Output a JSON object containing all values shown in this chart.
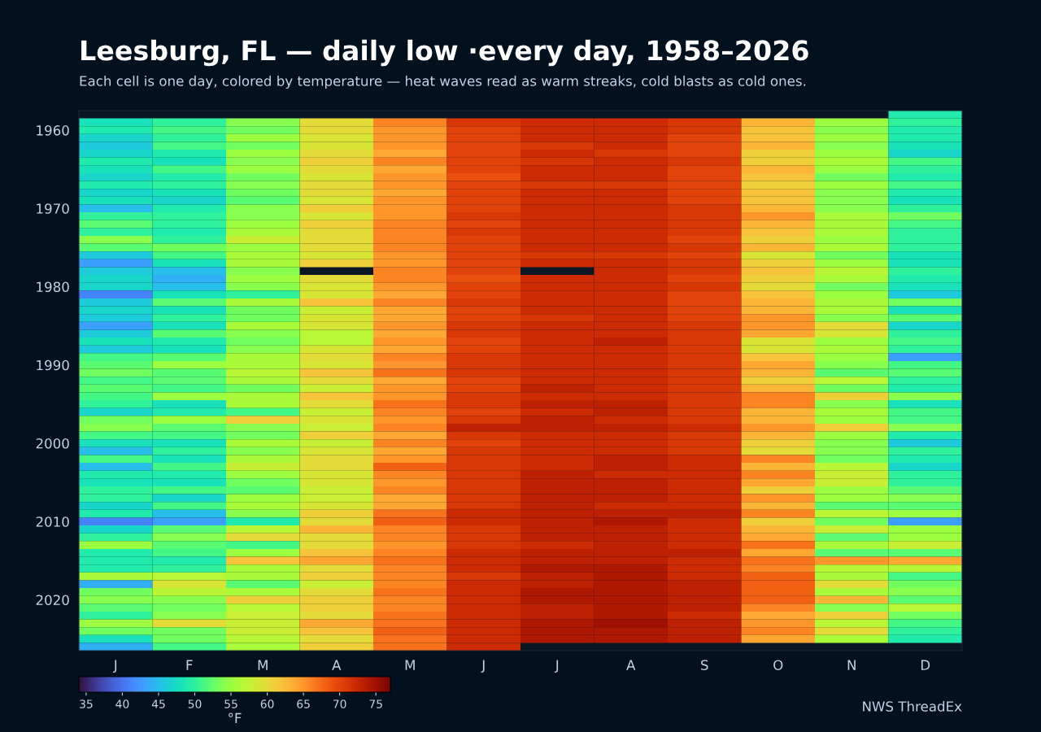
{
  "chart_data": {
    "type": "heatmap",
    "title": "Leesburg, FL — daily low ·every day, 1958–2026",
    "subtitle": "Each cell is one day, colored by temperature — heat waves read as warm streaks, cold blasts as cold ones.",
    "categories": [
      "J",
      "F",
      "M",
      "A",
      "M",
      "J",
      "J",
      "A",
      "S",
      "O",
      "N",
      "D"
    ],
    "y_categories": [
      null,
      null,
      "1960",
      null,
      null,
      null,
      null,
      null,
      null,
      null,
      null,
      null,
      "1970",
      null,
      null,
      null,
      null,
      null,
      null,
      null,
      null,
      null,
      "1980",
      null,
      null,
      null,
      null,
      null,
      null,
      null,
      null,
      null,
      "1990",
      null,
      null,
      null,
      null,
      null,
      null,
      null,
      null,
      null,
      "2000",
      null,
      null,
      null,
      null,
      null,
      null,
      null,
      null,
      null,
      "2010",
      null,
      null,
      null,
      null,
      null,
      null,
      null,
      null,
      null,
      "2020",
      null,
      null,
      null,
      null,
      null,
      null
    ],
    "cells": [
      [
        null,
        null,
        null,
        null,
        null,
        null,
        null,
        null,
        null,
        null,
        null,
        49
      ],
      [
        48,
        50,
        54,
        60,
        66,
        71,
        72,
        72,
        71,
        63,
        55,
        50
      ],
      [
        49,
        51,
        53,
        60,
        65,
        70,
        72,
        72,
        71,
        62,
        54,
        49
      ],
      [
        47,
        50,
        55,
        59,
        65,
        70,
        72,
        72,
        70,
        62,
        55,
        49
      ],
      [
        46,
        51,
        53,
        59,
        65,
        70,
        71,
        72,
        70,
        63,
        54,
        48
      ],
      [
        47,
        49,
        55,
        60,
        64,
        70,
        72,
        71,
        70,
        61,
        55,
        47
      ],
      [
        49,
        48,
        54,
        61,
        66,
        70,
        71,
        72,
        71,
        61,
        56,
        51
      ],
      [
        48,
        51,
        55,
        60,
        64,
        70,
        72,
        72,
        70,
        63,
        55,
        50
      ],
      [
        47,
        49,
        53,
        59,
        65,
        69,
        72,
        72,
        70,
        62,
        53,
        49
      ],
      [
        49,
        50,
        54,
        60,
        65,
        70,
        71,
        71,
        70,
        61,
        55,
        51
      ],
      [
        47,
        48,
        53,
        60,
        64,
        70,
        72,
        72,
        70,
        62,
        54,
        49
      ],
      [
        48,
        47,
        52,
        59,
        65,
        70,
        72,
        72,
        70,
        62,
        54,
        48
      ],
      [
        45,
        49,
        54,
        61,
        65,
        70,
        72,
        72,
        71,
        63,
        54,
        50
      ],
      [
        50,
        50,
        54,
        59,
        65,
        71,
        72,
        72,
        71,
        65,
        56,
        53
      ],
      [
        52,
        50,
        55,
        61,
        66,
        70,
        72,
        72,
        71,
        63,
        56,
        51
      ],
      [
        50,
        49,
        56,
        60,
        66,
        71,
        72,
        72,
        71,
        62,
        56,
        50
      ],
      [
        54,
        50,
        58,
        60,
        66,
        70,
        72,
        72,
        70,
        61,
        55,
        50
      ],
      [
        52,
        53,
        55,
        60,
        66,
        70,
        72,
        72,
        71,
        63,
        56,
        50
      ],
      [
        46,
        51,
        56,
        59,
        65,
        70,
        71,
        71,
        70,
        59,
        53,
        48
      ],
      [
        43,
        48,
        56,
        61,
        65,
        70,
        72,
        72,
        71,
        61,
        55,
        48
      ],
      [
        46,
        45,
        54,
        null,
        66,
        70,
        null,
        72,
        71,
        62,
        57,
        50
      ],
      [
        47,
        44,
        55,
        60,
        66,
        69,
        72,
        72,
        70,
        61,
        56,
        49
      ],
      [
        47,
        45,
        54,
        59,
        65,
        70,
        72,
        72,
        71,
        60,
        53,
        48
      ],
      [
        41,
        48,
        50,
        59,
        64,
        70,
        72,
        72,
        70,
        62,
        55,
        46
      ],
      [
        46,
        52,
        56,
        62,
        66,
        71,
        72,
        72,
        70,
        63,
        56,
        53
      ],
      [
        47,
        48,
        53,
        58,
        64,
        70,
        72,
        72,
        70,
        63,
        56,
        48
      ],
      [
        46,
        50,
        53,
        59,
        64,
        70,
        71,
        72,
        70,
        65,
        54,
        52
      ],
      [
        43,
        48,
        56,
        59,
        65,
        71,
        72,
        72,
        71,
        65,
        60,
        47
      ],
      [
        46,
        52,
        54,
        57,
        64,
        71,
        72,
        72,
        71,
        64,
        59,
        50
      ],
      [
        48,
        49,
        53,
        57,
        65,
        70,
        72,
        73,
        71,
        59,
        55,
        51
      ],
      [
        46,
        48,
        54,
        59,
        64,
        70,
        72,
        72,
        71,
        59,
        56,
        50
      ],
      [
        51,
        52,
        56,
        60,
        66,
        71,
        72,
        72,
        71,
        62,
        55,
        43
      ],
      [
        52,
        55,
        56,
        59,
        65,
        71,
        72,
        72,
        71,
        64,
        54,
        51
      ],
      [
        53,
        52,
        57,
        62,
        67,
        71,
        72,
        72,
        71,
        63,
        52,
        52
      ],
      [
        51,
        52,
        56,
        60,
        64,
        70,
        72,
        72,
        71,
        61,
        57,
        50
      ],
      [
        52,
        51,
        53,
        58,
        65,
        70,
        73,
        72,
        71,
        63,
        53,
        49
      ],
      [
        51,
        55,
        56,
        62,
        65,
        71,
        72,
        72,
        71,
        66,
        61,
        54
      ],
      [
        50,
        48,
        56,
        60,
        67,
        71,
        73,
        73,
        71,
        66,
        54,
        48
      ],
      [
        47,
        49,
        51,
        58,
        66,
        70,
        72,
        73,
        71,
        63,
        56,
        51
      ],
      [
        53,
        55,
        61,
        59,
        65,
        71,
        73,
        72,
        71,
        63,
        55,
        51
      ],
      [
        54,
        52,
        54,
        58,
        66,
        73,
        73,
        73,
        72,
        65,
        61,
        54
      ],
      [
        51,
        51,
        53,
        61,
        64,
        71,
        72,
        72,
        71,
        63,
        55,
        49
      ],
      [
        48,
        48,
        56,
        58,
        66,
        70,
        72,
        72,
        71,
        61,
        54,
        46
      ],
      [
        45,
        50,
        54,
        59,
        64,
        71,
        72,
        72,
        71,
        60,
        54,
        50
      ],
      [
        51,
        48,
        56,
        60,
        65,
        71,
        72,
        73,
        72,
        66,
        53,
        49
      ],
      [
        45,
        51,
        58,
        60,
        68,
        71,
        72,
        73,
        72,
        63,
        57,
        47
      ],
      [
        49,
        49,
        55,
        59,
        66,
        71,
        73,
        72,
        72,
        66,
        58,
        50
      ],
      [
        48,
        48,
        53,
        59,
        65,
        71,
        73,
        73,
        72,
        64,
        58,
        50
      ],
      [
        50,
        51,
        52,
        58,
        66,
        71,
        73,
        73,
        72,
        61,
        55,
        52
      ],
      [
        50,
        47,
        55,
        58,
        64,
        71,
        73,
        73,
        72,
        65,
        55,
        54
      ],
      [
        47,
        51,
        56,
        59,
        64,
        71,
        73,
        72,
        72,
        63,
        52,
        52
      ],
      [
        49,
        45,
        54,
        61,
        67,
        72,
        73,
        73,
        73,
        66,
        57,
        55
      ],
      [
        41,
        43,
        49,
        60,
        68,
        72,
        73,
        74,
        72,
        61,
        53,
        43
      ],
      [
        47,
        52,
        57,
        63,
        66,
        71,
        73,
        73,
        72,
        63,
        58,
        55
      ],
      [
        50,
        54,
        60,
        60,
        66,
        71,
        73,
        73,
        72,
        64,
        52,
        55
      ],
      [
        55,
        52,
        51,
        60,
        65,
        71,
        72,
        73,
        72,
        67,
        56,
        58
      ],
      [
        49,
        51,
        55,
        62,
        66,
        72,
        73,
        73,
        73,
        64,
        52,
        52
      ],
      [
        49,
        49,
        62,
        64,
        67,
        72,
        73,
        73,
        72,
        67,
        65,
        64
      ],
      [
        49,
        50,
        56,
        60,
        66,
        72,
        74,
        74,
        72,
        66,
        57,
        57
      ],
      [
        56,
        57,
        56,
        61,
        66,
        71,
        73,
        74,
        72,
        68,
        56,
        51
      ],
      [
        44,
        59,
        52,
        58,
        66,
        72,
        73,
        74,
        73,
        68,
        60,
        53
      ],
      [
        53,
        57,
        56,
        60,
        67,
        72,
        74,
        74,
        73,
        68,
        56,
        54
      ],
      [
        54,
        54,
        61,
        61,
        66,
        72,
        74,
        74,
        73,
        68,
        63,
        52
      ],
      [
        52,
        53,
        57,
        61,
        66,
        72,
        73,
        74,
        73,
        66,
        54,
        57
      ],
      [
        50,
        54,
        58,
        60,
        67,
        72,
        73,
        74,
        72,
        64,
        61,
        53
      ],
      [
        55,
        60,
        58,
        64,
        67,
        72,
        74,
        75,
        73,
        65,
        57,
        51
      ],
      [
        53,
        53,
        58,
        62,
        68,
        72,
        74,
        74,
        73,
        66,
        60,
        50
      ],
      [
        48,
        53,
        57,
        60,
        67,
        72,
        74,
        74,
        73,
        64,
        56,
        49
      ],
      [
        44,
        51,
        56,
        61,
        67,
        72,
        null,
        null,
        null,
        null,
        null,
        null
      ]
    ],
    "clim": [
      34,
      77
    ],
    "cticks": [
      35,
      40,
      45,
      50,
      55,
      60,
      65,
      70,
      75
    ],
    "clabel": "°F",
    "annotations": [
      "NWS ThreadEx"
    ]
  }
}
